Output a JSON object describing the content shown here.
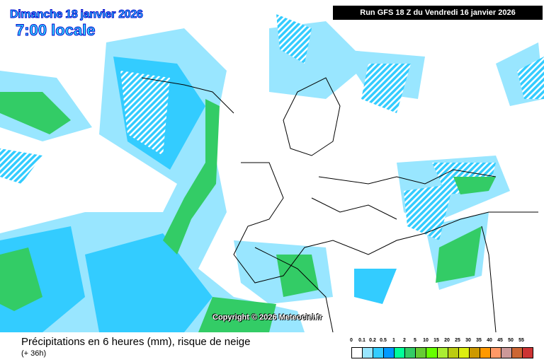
{
  "header": {
    "date": "Dimanche 18 janvier 2026",
    "time": "7:00 locale",
    "run": "Run GFS 18 Z du Vendredi 16 janvier 2026"
  },
  "copyright": "Copyright © 2026 Meteociel.fr",
  "footer": {
    "title": "Précipitations en 6 heures (mm), risque de neige",
    "subtitle": "(+ 36h)"
  },
  "legend": {
    "labels": [
      "0",
      "0.1",
      "0.2",
      "0.5",
      "1",
      "2",
      "5",
      "10",
      "15",
      "20",
      "25",
      "30",
      "35",
      "40",
      "45",
      "50",
      "55"
    ],
    "colors": [
      "#ffffff",
      "#99e6ff",
      "#33ccff",
      "#0099ff",
      "#00ff99",
      "#33cc66",
      "#66cc33",
      "#66ff00",
      "#aaee33",
      "#bbcc11",
      "#ddee11",
      "#cc9900",
      "#ff9900",
      "#ff9966",
      "#cc9999",
      "#cc6633",
      "#cc3333"
    ]
  }
}
